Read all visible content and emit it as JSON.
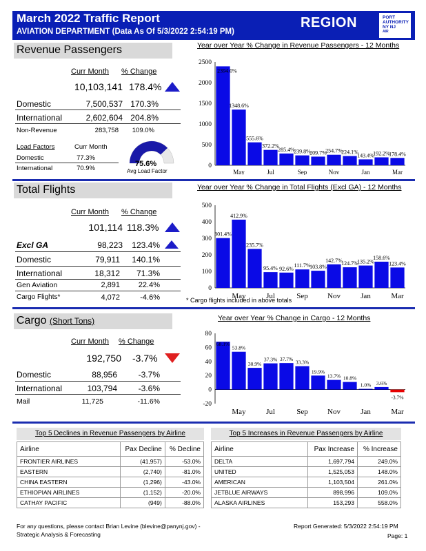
{
  "header": {
    "title": "March 2022 Traffic Report",
    "subtitle": "AVIATION DEPARTMENT (Data As Of 5/3/2022 2:54:19 PM)",
    "region": "REGION",
    "logo_lines": [
      "PORT",
      "AUTHORITY",
      "NY NJ",
      "AIR"
    ],
    "color": "#0a1fb5"
  },
  "revenue": {
    "title": "Revenue Passengers",
    "col_curr": "Curr Month",
    "col_change": "% Change",
    "total_value": "10,103,141",
    "total_change": "178.4%",
    "trend": "up",
    "rows": [
      {
        "label": "Domestic",
        "value": "7,500,537",
        "change": "170.3%"
      },
      {
        "label": "International",
        "value": "2,602,604",
        "change": "204.8%"
      },
      {
        "label": "Non-Revenue",
        "value": "283,758",
        "change": "109.0%"
      }
    ],
    "lf_header": "Load Factors",
    "lf_col": "Curr Month",
    "lf_rows": [
      {
        "label": "Domestic",
        "value": "77.3%"
      },
      {
        "label": "International",
        "value": "70.9%"
      }
    ],
    "gauge_value": "75.6%",
    "gauge_fraction": 0.756,
    "gauge_label": "Avg Load Factor"
  },
  "flights": {
    "title": "Total Flights",
    "col_curr": "Curr Month",
    "col_change": "% Change",
    "total_value": "101,114",
    "total_change": "118.3%",
    "exclga_label": "Excl GA",
    "exclga_value": "98,223",
    "exclga_change": "123.4%",
    "rows": [
      {
        "label": "Domestic",
        "value": "79,911",
        "change": "140.1%"
      },
      {
        "label": "International",
        "value": "18,312",
        "change": "71.3%"
      },
      {
        "label": "Gen Aviation",
        "value": "2,891",
        "change": "22.4%"
      },
      {
        "label": "Cargo Flights*",
        "value": "4,072",
        "change": "-4.6%"
      }
    ],
    "footnote": "* Cargo flights included in above totals"
  },
  "cargo": {
    "title": "Cargo",
    "title_unit": "(Short Tons)",
    "col_curr": "Curr Month",
    "col_change": "% Change",
    "total_value": "192,750",
    "total_change": "-3.7%",
    "trend": "down",
    "rows": [
      {
        "label": "Domestic",
        "value": "88,956",
        "change": "-3.7%"
      },
      {
        "label": "International",
        "value": "103,794",
        "change": "-3.6%"
      },
      {
        "label": "Mail",
        "value": "11,725",
        "change": "-11.6%"
      }
    ]
  },
  "chart_data": [
    {
      "type": "bar",
      "title": "Year over Year % Change in Revenue Passengers - 12 Months",
      "categories": [
        "Apr",
        "May",
        "Jun",
        "Jul",
        "Aug",
        "Sep",
        "Oct",
        "Nov",
        "Dec",
        "Jan",
        "Feb",
        "Mar"
      ],
      "x_tick_labels": [
        "May",
        "Jul",
        "Sep",
        "Nov",
        "Jan",
        "Mar"
      ],
      "values": [
        2394.0,
        1348.6,
        555.6,
        372.2,
        285.4,
        239.8,
        209.7,
        254.7,
        224.1,
        143.4,
        192.2,
        178.4
      ],
      "data_labels": [
        "2394.0%",
        "1348.6%",
        "555.6%",
        "372.2%",
        "285.4%",
        "239.8%",
        "209.7%",
        "254.7%",
        "224.1%",
        "143.4%",
        "192.2%",
        "178.4%"
      ],
      "ylim": [
        0,
        2500
      ],
      "yticks": [
        0,
        500,
        1000,
        1500,
        2000,
        2500
      ],
      "bar_color": "#0a0ae6",
      "negative_color": "#e60000"
    },
    {
      "type": "bar",
      "title": "Year over Year % Change in Total Flights (Excl GA) - 12 Months",
      "categories": [
        "Apr",
        "May",
        "Jun",
        "Jul",
        "Aug",
        "Sep",
        "Oct",
        "Nov",
        "Dec",
        "Jan",
        "Feb",
        "Mar"
      ],
      "x_tick_labels": [
        "May",
        "Jul",
        "Sep",
        "Nov",
        "Jan",
        "Mar"
      ],
      "values": [
        301.4,
        412.9,
        235.7,
        95.4,
        92.6,
        111.7,
        103.8,
        142.7,
        124.7,
        135.2,
        158.6,
        123.4
      ],
      "data_labels": [
        "301.4%",
        "412.9%",
        "235.7%",
        "95.4%",
        "92.6%",
        "111.7%",
        "103.8%",
        "142.7%",
        "124.7%",
        "135.2%",
        "158.6%",
        "123.4%"
      ],
      "ylim": [
        0,
        500
      ],
      "yticks": [
        0,
        100,
        200,
        300,
        400,
        500
      ],
      "bar_color": "#0a0ae6",
      "negative_color": "#e60000"
    },
    {
      "type": "bar",
      "title": "Year over Year % Change in Cargo - 12 Months",
      "categories": [
        "Apr",
        "May",
        "Jun",
        "Jul",
        "Aug",
        "Sep",
        "Oct",
        "Nov",
        "Dec",
        "Jan",
        "Feb",
        "Mar"
      ],
      "x_tick_labels": [
        "May",
        "Jul",
        "Sep",
        "Nov",
        "Jan",
        "Mar"
      ],
      "values": [
        68.1,
        53.8,
        30.9,
        37.3,
        37.7,
        33.3,
        19.9,
        13.7,
        10.8,
        1.0,
        3.6,
        -3.7
      ],
      "data_labels": [
        "68.1%",
        "53.8%",
        "30.9%",
        "37.3%",
        "37.7%",
        "33.3%",
        "19.9%",
        "13.7%",
        "10.8%",
        "1.0%",
        "3.6%",
        "-3.7%"
      ],
      "ylim": [
        -20,
        80
      ],
      "yticks": [
        -20,
        0,
        20,
        40,
        60,
        80
      ],
      "bar_color": "#0a0ae6",
      "negative_color": "#e60000"
    }
  ],
  "declines": {
    "title": "Top 5 Declines in Revenue Passengers by Airline",
    "headers": [
      "Airline",
      "Pax Decline",
      "% Decline"
    ],
    "rows": [
      [
        "FRONTIER AIRLINES",
        "(41,957)",
        "-53.0%"
      ],
      [
        "EASTERN",
        "(2,740)",
        "-81.0%"
      ],
      [
        "CHINA EASTERN",
        "(1,296)",
        "-43.0%"
      ],
      [
        "ETHIOPIAN AIRLINES",
        "(1,152)",
        "-20.0%"
      ],
      [
        "CATHAY PACIFIC",
        "(949)",
        "-88.0%"
      ]
    ]
  },
  "increases": {
    "title": "Top 5 Increases in Revenue Passengers by Airline",
    "headers": [
      "Airline",
      "Pax Increase",
      "% Increase"
    ],
    "rows": [
      [
        "DELTA",
        "1,697,794",
        "249.0%"
      ],
      [
        "UNITED",
        "1,525,053",
        "148.0%"
      ],
      [
        "AMERICAN",
        "1,103,504",
        "261.0%"
      ],
      [
        "JETBLUE AIRWAYS",
        "898,996",
        "109.0%"
      ],
      [
        "ALASKA AIRLINES",
        "153,293",
        "558.0%"
      ]
    ]
  },
  "footer": {
    "contact_line1": "For any questions, please contact Brian Levine (blevine@panynj.gov) -",
    "contact_line2": "Strategic Analysis & Forecasting",
    "generated": "Report Generated: 5/3/2022 2:54:19 PM",
    "page": "Page: 1"
  }
}
